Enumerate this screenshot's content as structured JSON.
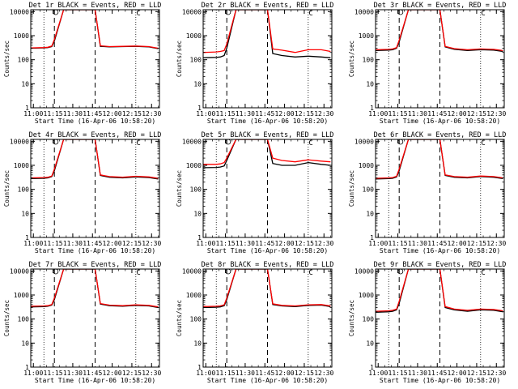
{
  "figure": {
    "title_pattern": "BLACK = Events, RED = LLD",
    "xlabel": "Start Time (16-Apr-06 10:58:20)",
    "ylabel": "Counts/sec",
    "x_ticks": [
      "11:00",
      "11:15",
      "11:30",
      "11:45",
      "12:00",
      "12:15",
      "12:30"
    ],
    "y_ticks": [
      "1",
      "10",
      "100",
      "1000",
      "10000"
    ],
    "marker_c": "C",
    "colors": {
      "events": "#000000",
      "lld": "#ff0000"
    }
  },
  "chart_data": [
    {
      "type": "line",
      "title": "Det 1r BLACK = Events, RED = LLD",
      "xlabel": "Start Time (16-Apr-06 10:58:20)",
      "ylabel": "Counts/sec",
      "x_unit": "minutes since 11:00",
      "xlim": [
        0,
        98
      ],
      "ylim": [
        1,
        12000
      ],
      "yscale": "log",
      "x": [
        0,
        10,
        13,
        16,
        18,
        25,
        30,
        40,
        49,
        53,
        60,
        70,
        80,
        90,
        97
      ],
      "series": [
        {
          "name": "Events",
          "values": [
            300,
            310,
            320,
            350,
            600,
            12000,
            12000,
            12000,
            12000,
            360,
            340,
            350,
            360,
            340,
            290
          ]
        },
        {
          "name": "LLD",
          "values": [
            310,
            320,
            330,
            370,
            700,
            12000,
            12000,
            12000,
            12000,
            380,
            350,
            360,
            370,
            350,
            300
          ]
        }
      ],
      "vlines_dashed": [
        18,
        49
      ],
      "vlines_dotted": [
        10,
        80
      ],
      "c_marker_x": 82,
      "o_marker_x": 19
    },
    {
      "type": "line",
      "title": "Det 2r BLACK = Events, RED = LLD",
      "xlabel": "Start Time (16-Apr-06 10:58:20)",
      "ylabel": "Counts/sec",
      "x_unit": "minutes since 11:00",
      "xlim": [
        0,
        98
      ],
      "ylim": [
        1,
        12000
      ],
      "yscale": "log",
      "x": [
        0,
        10,
        13,
        16,
        18,
        25,
        30,
        40,
        49,
        53,
        60,
        70,
        80,
        90,
        97
      ],
      "series": [
        {
          "name": "Events",
          "values": [
            120,
            125,
            130,
            150,
            300,
            12000,
            12000,
            12000,
            12000,
            180,
            150,
            130,
            140,
            130,
            120
          ]
        },
        {
          "name": "LLD",
          "values": [
            200,
            210,
            220,
            240,
            450,
            12000,
            12000,
            12000,
            12000,
            280,
            250,
            200,
            260,
            260,
            220
          ]
        }
      ],
      "vlines_dashed": [
        18,
        49
      ],
      "vlines_dotted": [
        10,
        80
      ],
      "c_marker_x": 82,
      "o_marker_x": 19
    },
    {
      "type": "line",
      "title": "Det 3r BLACK = Events, RED = LLD",
      "xlabel": "Start Time (16-Apr-06 10:58:20)",
      "ylabel": "Counts/sec",
      "x_unit": "minutes since 11:00",
      "xlim": [
        0,
        98
      ],
      "ylim": [
        1,
        12000
      ],
      "yscale": "log",
      "x": [
        0,
        10,
        13,
        16,
        18,
        25,
        30,
        40,
        49,
        53,
        60,
        70,
        80,
        90,
        97
      ],
      "series": [
        {
          "name": "Events",
          "values": [
            240,
            250,
            260,
            300,
            550,
            12000,
            12000,
            12000,
            12000,
            340,
            270,
            240,
            260,
            250,
            220
          ]
        },
        {
          "name": "LLD",
          "values": [
            260,
            270,
            280,
            320,
            650,
            12000,
            12000,
            12000,
            12000,
            360,
            290,
            260,
            280,
            270,
            240
          ]
        }
      ],
      "vlines_dashed": [
        18,
        49
      ],
      "vlines_dotted": [
        10,
        80
      ],
      "c_marker_x": 82,
      "o_marker_x": 19
    },
    {
      "type": "line",
      "title": "Det 4r BLACK = Events, RED = LLD",
      "xlabel": "Start Time (16-Apr-06 10:58:20)",
      "ylabel": "Counts/sec",
      "x_unit": "minutes since 11:00",
      "xlim": [
        0,
        98
      ],
      "ylim": [
        1,
        12000
      ],
      "yscale": "log",
      "x": [
        0,
        10,
        13,
        16,
        18,
        25,
        30,
        40,
        49,
        53,
        60,
        70,
        80,
        90,
        97
      ],
      "series": [
        {
          "name": "Events",
          "values": [
            280,
            290,
            300,
            340,
            600,
            12000,
            12000,
            12000,
            12000,
            380,
            320,
            300,
            330,
            310,
            270
          ]
        },
        {
          "name": "LLD",
          "values": [
            300,
            310,
            320,
            360,
            700,
            12000,
            12000,
            12000,
            12000,
            400,
            340,
            320,
            350,
            330,
            290
          ]
        }
      ],
      "vlines_dashed": [
        18,
        49
      ],
      "vlines_dotted": [
        10,
        80
      ],
      "c_marker_x": 82,
      "o_marker_x": 19
    },
    {
      "type": "line",
      "title": "Det 5r BLACK = Events, RED = LLD",
      "xlabel": "Start Time (16-Apr-06 10:58:20)",
      "ylabel": "Counts/sec",
      "x_unit": "minutes since 11:00",
      "xlim": [
        0,
        98
      ],
      "ylim": [
        1,
        12000
      ],
      "yscale": "log",
      "x": [
        0,
        10,
        13,
        16,
        18,
        25,
        30,
        40,
        49,
        53,
        60,
        70,
        80,
        90,
        97
      ],
      "series": [
        {
          "name": "Events",
          "values": [
            800,
            820,
            850,
            950,
            1600,
            12000,
            12000,
            12000,
            12000,
            1200,
            1000,
            1000,
            1300,
            1100,
            1000
          ]
        },
        {
          "name": "LLD",
          "values": [
            1100,
            1100,
            1150,
            1300,
            2000,
            12000,
            12000,
            12000,
            12000,
            2000,
            1600,
            1400,
            1700,
            1500,
            1400
          ]
        }
      ],
      "vlines_dashed": [
        18,
        49
      ],
      "vlines_dotted": [
        10,
        80
      ],
      "c_marker_x": 82,
      "o_marker_x": 19
    },
    {
      "type": "line",
      "title": "Det 6r BLACK = Events, RED = LLD",
      "xlabel": "Start Time (16-Apr-06 10:58:20)",
      "ylabel": "Counts/sec",
      "x_unit": "minutes since 11:00",
      "xlim": [
        0,
        98
      ],
      "ylim": [
        1,
        12000
      ],
      "yscale": "log",
      "x": [
        0,
        10,
        13,
        16,
        18,
        25,
        30,
        40,
        49,
        53,
        60,
        70,
        80,
        90,
        97
      ],
      "series": [
        {
          "name": "Events",
          "values": [
            270,
            280,
            290,
            330,
            600,
            12000,
            12000,
            12000,
            12000,
            380,
            320,
            300,
            340,
            320,
            280
          ]
        },
        {
          "name": "LLD",
          "values": [
            290,
            300,
            310,
            350,
            700,
            12000,
            12000,
            12000,
            12000,
            400,
            340,
            320,
            360,
            340,
            300
          ]
        }
      ],
      "vlines_dashed": [
        18,
        49
      ],
      "vlines_dotted": [
        10,
        80
      ],
      "c_marker_x": 82,
      "o_marker_x": 19
    },
    {
      "type": "line",
      "title": "Det 7r BLACK = Events, RED = LLD",
      "xlabel": "Start Time (16-Apr-06 10:58:20)",
      "ylabel": "Counts/sec",
      "x_unit": "minutes since 11:00",
      "xlim": [
        0,
        98
      ],
      "ylim": [
        1,
        12000
      ],
      "yscale": "log",
      "x": [
        0,
        10,
        13,
        16,
        18,
        25,
        30,
        40,
        49,
        53,
        60,
        70,
        80,
        90,
        97
      ],
      "series": [
        {
          "name": "Events",
          "values": [
            320,
            330,
            340,
            380,
            650,
            12000,
            12000,
            12000,
            12000,
            420,
            360,
            340,
            370,
            350,
            300
          ]
        },
        {
          "name": "LLD",
          "values": [
            340,
            350,
            360,
            400,
            750,
            12000,
            12000,
            12000,
            12000,
            440,
            380,
            360,
            390,
            370,
            320
          ]
        }
      ],
      "vlines_dashed": [
        18,
        49
      ],
      "vlines_dotted": [
        10,
        80
      ],
      "c_marker_x": 82,
      "o_marker_x": 19
    },
    {
      "type": "line",
      "title": "Det 8r BLACK = Events, RED = LLD",
      "xlabel": "Start Time (16-Apr-06 10:58:20)",
      "ylabel": "Counts/sec",
      "x_unit": "minutes since 11:00",
      "xlim": [
        0,
        98
      ],
      "ylim": [
        1,
        12000
      ],
      "yscale": "log",
      "x": [
        0,
        10,
        13,
        16,
        18,
        25,
        30,
        40,
        49,
        53,
        60,
        70,
        80,
        90,
        97
      ],
      "series": [
        {
          "name": "Events",
          "values": [
            300,
            310,
            320,
            360,
            650,
            12000,
            12000,
            12000,
            12000,
            400,
            350,
            330,
            370,
            380,
            330
          ]
        },
        {
          "name": "LLD",
          "values": [
            330,
            340,
            350,
            390,
            750,
            12000,
            12000,
            12000,
            12000,
            430,
            370,
            350,
            390,
            400,
            350
          ]
        }
      ],
      "vlines_dashed": [
        18,
        49
      ],
      "vlines_dotted": [
        10,
        80
      ],
      "c_marker_x": 82,
      "o_marker_x": 19
    },
    {
      "type": "line",
      "title": "Det 9r BLACK = Events, RED = LLD",
      "xlabel": "Start Time (16-Apr-06 10:58:20)",
      "ylabel": "Counts/sec",
      "x_unit": "minutes since 11:00",
      "xlim": [
        0,
        98
      ],
      "ylim": [
        1,
        12000
      ],
      "yscale": "log",
      "x": [
        0,
        10,
        13,
        16,
        18,
        25,
        30,
        40,
        49,
        53,
        60,
        70,
        80,
        90,
        97
      ],
      "series": [
        {
          "name": "Events",
          "values": [
            190,
            200,
            210,
            240,
            450,
            12000,
            12000,
            12000,
            12000,
            300,
            240,
            210,
            240,
            230,
            200
          ]
        },
        {
          "name": "LLD",
          "values": [
            210,
            220,
            230,
            260,
            550,
            12000,
            12000,
            12000,
            12000,
            330,
            260,
            230,
            260,
            250,
            220
          ]
        }
      ],
      "vlines_dashed": [
        18,
        49
      ],
      "vlines_dotted": [
        10,
        80
      ],
      "c_marker_x": 82,
      "o_marker_x": 19
    }
  ]
}
